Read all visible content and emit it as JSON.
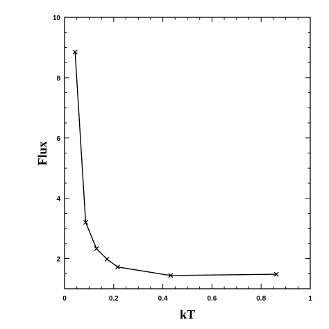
{
  "chart_data": {
    "type": "line",
    "title": "",
    "xlabel": "kT",
    "ylabel": "Flux",
    "xlim": [
      0,
      1
    ],
    "ylim": [
      1,
      10
    ],
    "xticks": [
      0,
      0.2,
      0.4,
      0.6,
      0.8,
      1
    ],
    "xtick_labels": [
      "0",
      "0.2",
      "0.4",
      "0.6",
      "0.8",
      "1"
    ],
    "yticks": [
      2,
      4,
      6,
      8,
      10
    ],
    "ytick_labels": [
      "2",
      "4",
      "6",
      "8",
      "10"
    ],
    "grid": false,
    "marker": "x",
    "series": [
      {
        "x": [
          0.043,
          0.086,
          0.13,
          0.173,
          0.216,
          0.432,
          0.862
        ],
        "y": [
          8.85,
          3.2,
          2.33,
          1.98,
          1.72,
          1.44,
          1.48
        ]
      }
    ],
    "line_color": "#000000"
  }
}
